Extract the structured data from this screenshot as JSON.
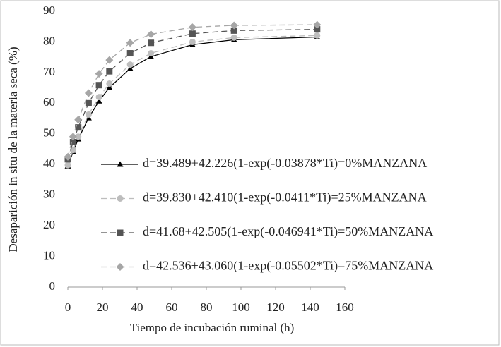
{
  "chart_data": {
    "type": "line",
    "x_label": "Tiempo de incubación ruminal (h)",
    "y_label": "Desaparición in situ de la materia seca (%)",
    "x": [
      0,
      3,
      6,
      12,
      18,
      24,
      36,
      48,
      72,
      96,
      144
    ],
    "xlim": [
      0,
      160
    ],
    "xticks": [
      0,
      20,
      40,
      60,
      80,
      100,
      120,
      140,
      160
    ],
    "ylim": [
      0,
      90
    ],
    "yticks": [
      0,
      10,
      20,
      30,
      40,
      50,
      60,
      70,
      80,
      90
    ],
    "series": [
      {
        "name": "d=39.489+42.226(1-exp(-0.03878*Ti)=0%MANZANA",
        "color": "#000000",
        "dash": "solid",
        "marker": "triangle",
        "values": [
          39.5,
          44.1,
          48.3,
          55.2,
          60.7,
          65.1,
          71.3,
          75.2,
          79.1,
          80.7,
          81.6
        ]
      },
      {
        "name": "d=39.830+42.410(1-exp(-0.0411*Ti)=25%MANZANA",
        "color": "#bdbdbd",
        "dash": "dashed",
        "marker": "circle",
        "values": [
          39.8,
          44.7,
          49.1,
          56.3,
          62.0,
          66.4,
          72.6,
          76.3,
          80.0,
          81.4,
          82.1
        ]
      },
      {
        "name": "d=41.68+42.505(1-exp(-0.046941*Ti)=50%MANZANA",
        "color": "#555555",
        "dash": "dashed",
        "marker": "square",
        "values": [
          41.7,
          47.3,
          52.1,
          60.0,
          65.9,
          70.4,
          76.3,
          79.7,
          82.7,
          83.7,
          84.1
        ]
      },
      {
        "name": "d=42.536+43.060(1-exp(-0.05502*Ti)=75%MANZANA",
        "color": "#a6a6a6",
        "dash": "dashed",
        "marker": "diamond",
        "values": [
          42.5,
          49.1,
          54.6,
          63.3,
          69.6,
          74.1,
          79.7,
          82.5,
          84.8,
          85.4,
          85.6
        ]
      }
    ]
  }
}
